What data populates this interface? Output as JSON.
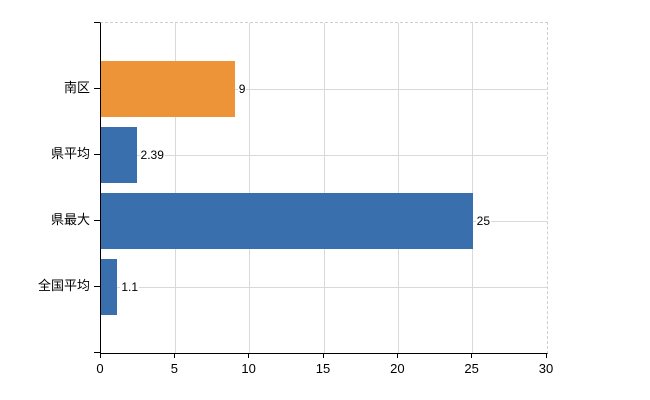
{
  "chart_data": {
    "type": "bar",
    "orientation": "horizontal",
    "title": "",
    "xlabel": "",
    "ylabel": "",
    "categories": [
      "南区",
      "県平均",
      "県最大",
      "全国平均"
    ],
    "values": [
      9,
      2.39,
      25,
      1.1
    ],
    "value_labels": [
      "9",
      "2.39",
      "25",
      "1.1"
    ],
    "bar_colors": [
      "#ED9438",
      "#3A6FAD",
      "#3A6FAD",
      "#3A6FAD"
    ],
    "xlim": [
      0,
      30
    ],
    "x_ticks": [
      0,
      5,
      10,
      15,
      20,
      25,
      30
    ],
    "grid": "on",
    "legend": "none",
    "colors": {
      "grid": "#d9d9d9",
      "dashed_border": "#cfcfcf",
      "axis": "#000000",
      "text": "#000000",
      "background": "#ffffff"
    }
  }
}
